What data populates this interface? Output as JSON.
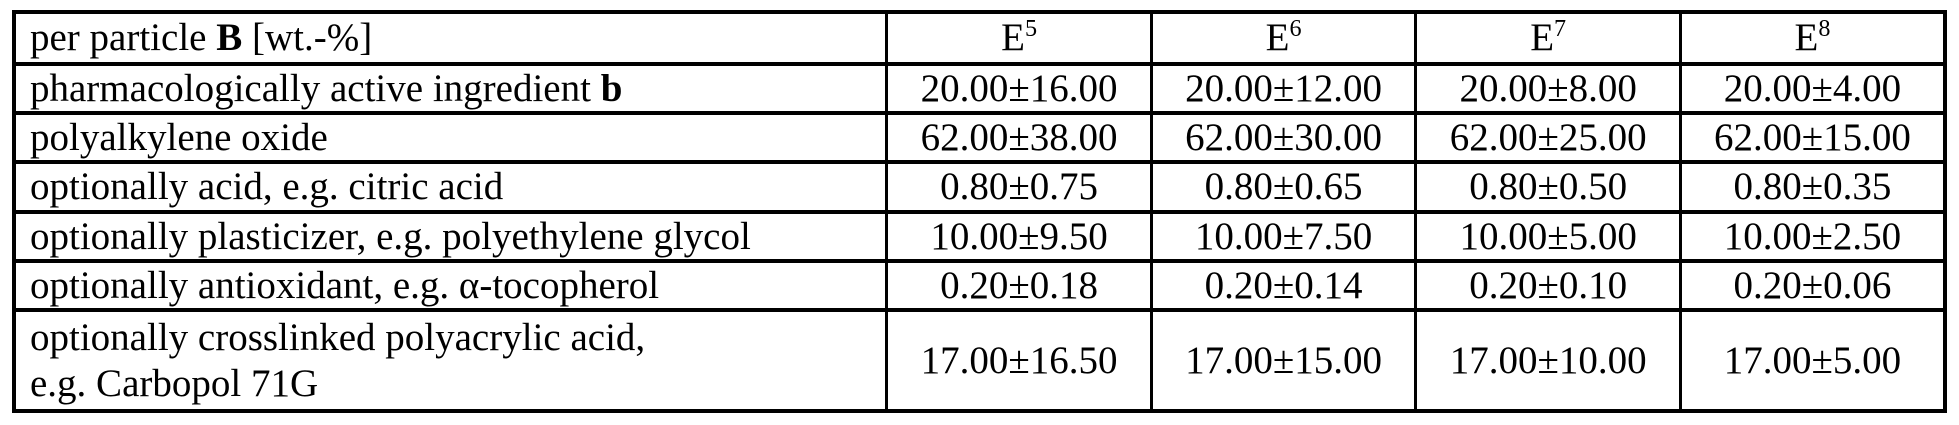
{
  "table": {
    "header": {
      "label_prefix": "per particle ",
      "label_bold": "B",
      "label_suffix": " [wt.-%]",
      "cols": [
        {
          "base": "E",
          "sup": "5"
        },
        {
          "base": "E",
          "sup": "6"
        },
        {
          "base": "E",
          "sup": "7"
        },
        {
          "base": "E",
          "sup": "8"
        }
      ]
    },
    "rows": [
      {
        "label": "pharmacologically active ingredient ",
        "label_bold": "b",
        "label_line2": "",
        "values": [
          "20.00±16.00",
          "20.00±12.00",
          "20.00±8.00",
          "20.00±4.00"
        ]
      },
      {
        "label": "polyalkylene oxide",
        "label_bold": "",
        "label_line2": "",
        "values": [
          "62.00±38.00",
          "62.00±30.00",
          "62.00±25.00",
          "62.00±15.00"
        ]
      },
      {
        "label": "optionally acid, e.g. citric acid",
        "label_bold": "",
        "label_line2": "",
        "values": [
          "0.80±0.75",
          "0.80±0.65",
          "0.80±0.50",
          "0.80±0.35"
        ]
      },
      {
        "label": "optionally plasticizer, e.g. polyethylene glycol",
        "label_bold": "",
        "label_line2": "",
        "values": [
          "10.00±9.50",
          "10.00±7.50",
          "10.00±5.00",
          "10.00±2.50"
        ]
      },
      {
        "label": "optionally antioxidant, e.g. α-tocopherol",
        "label_bold": "",
        "label_line2": "",
        "values": [
          "0.20±0.18",
          "0.20±0.14",
          "0.20±0.10",
          "0.20±0.06"
        ]
      },
      {
        "label": "optionally crosslinked polyacrylic acid,",
        "label_bold": "",
        "label_line2": "e.g. Carbopol 71G",
        "values": [
          "17.00±16.50",
          "17.00±15.00",
          "17.00±10.00",
          "17.00±5.00"
        ]
      }
    ],
    "colors": {
      "text": "#000000",
      "border": "#000000",
      "background": "#ffffff"
    }
  }
}
